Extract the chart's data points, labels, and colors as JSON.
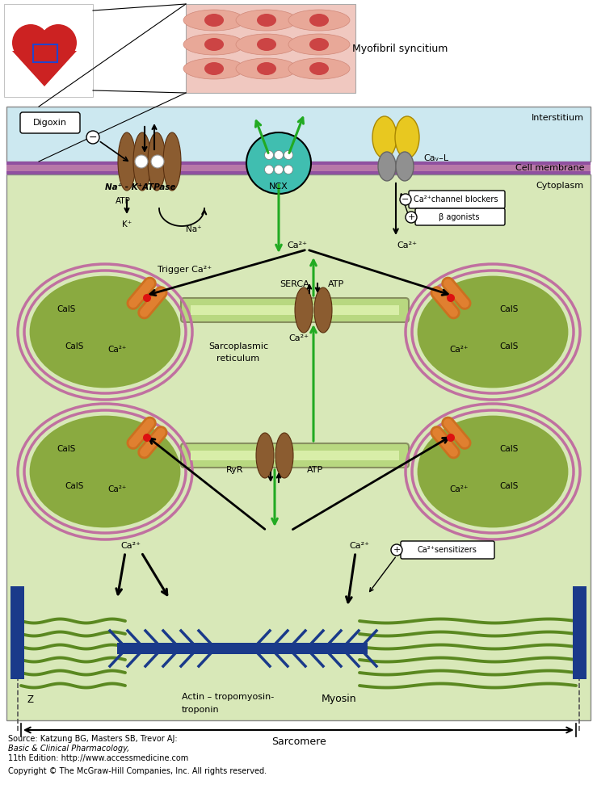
{
  "myofibril_label": "Myofibril syncitium",
  "interstitium_label": "Interstitium",
  "cell_membrane_label": "Cell membrane",
  "cytoplasm_label": "Cytoplasm",
  "na_k_atpase_label": "Na⁺ - K⁺ATPase",
  "ncx_label": "NCX",
  "cav_l_label": "Caᵥ–L",
  "digoxin_label": "Digoxin",
  "atp_label1": "ATP",
  "k_label": "K⁺",
  "na_label": "Na⁺",
  "ca2_main": "Ca²⁺",
  "trigger_ca_label": "Trigger Ca²⁺",
  "serca_label": "SERCA",
  "atp_label2": "ATP",
  "sarcoplasmic_label1": "Sarcoplasmic",
  "sarcoplasmic_label2": "reticulum",
  "ryr_label": "RyR",
  "atp_label3": "ATP",
  "ca2_sensitizers_label": "Ca²⁺sensitizers",
  "ca2_channel_blockers_label": "Ca²⁺channel blockers",
  "beta_agonists_label": "β agonists",
  "actin_label1": "Actin – tropomyosin-",
  "actin_label2": "troponin",
  "myosin_label": "Myosin",
  "sarcomere_label": "Sarcomere",
  "z_label": "Z",
  "source_line1": "Source: Katzung BG, Masters SB, Trevor AJ: ",
  "source_line1b": "Basic & Clinical Pharmacology,",
  "source_line2": "11th Edition: http://www.accessmedicine.com",
  "copyright_text": "Copyright © The McGraw-Hill Companies, Inc. All rights reserved.",
  "green_color": "#22aa22",
  "brown_color": "#8B5C30",
  "teal_color": "#40BEB0",
  "yellow_color": "#E8C820",
  "gray_color": "#909090",
  "dark_blue": "#1a3a8a",
  "blob_green": "#8aaa40",
  "blob_membrane": "#c070a0",
  "sr_green": "#b8d880",
  "bg_blue": "#cce8f0",
  "bg_green": "#d8e8b8",
  "membrane_purple": "#b878a8"
}
